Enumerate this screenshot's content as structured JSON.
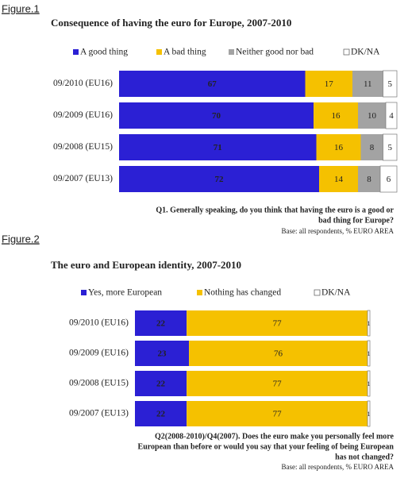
{
  "chart_data": [
    {
      "type": "stacked-bar",
      "figure_label": "Figure.1",
      "title": "Consequence of having the euro for Europe, 2007-2010",
      "categories": [
        "09/2010 (EU16)",
        "09/2009 (EU16)",
        "09/2008 (EU15)",
        "09/2007 (EU13)"
      ],
      "series": [
        {
          "name": "A good thing",
          "color": "#2b20d4",
          "values": [
            67,
            70,
            71,
            72
          ]
        },
        {
          "name": "A bad thing",
          "color": "#f5c100",
          "values": [
            17,
            16,
            16,
            14
          ]
        },
        {
          "name": "Neither good nor bad",
          "color": "#a3a3a3",
          "values": [
            11,
            10,
            8,
            8
          ]
        },
        {
          "name": "DK/NA",
          "color": "#ffffff",
          "values": [
            5,
            4,
            5,
            6
          ]
        }
      ],
      "notes": [
        "Q1. Generally speaking, do you think that having the euro is a good or",
        "bad thing for Europe?"
      ],
      "base": "Base: all respondents, % EURO AREA"
    },
    {
      "type": "stacked-bar",
      "figure_label": "Figure.2",
      "title": "The euro and European identity, 2007-2010",
      "categories": [
        "09/2010 (EU16)",
        "09/2009 (EU16)",
        "09/2008 (EU15)",
        "09/2007 (EU13)"
      ],
      "series": [
        {
          "name": "Yes, more European",
          "color": "#2b20d4",
          "values": [
            22,
            23,
            22,
            22
          ]
        },
        {
          "name": "Nothing has changed",
          "color": "#f5c100",
          "values": [
            77,
            76,
            77,
            77
          ]
        },
        {
          "name": "DK/NA",
          "color": "#ffffff",
          "values": [
            1,
            1,
            1,
            1
          ]
        }
      ],
      "notes": [
        "Q2(2008-2010)/Q4(2007). Does the euro make you personally feel more",
        "European than before or would you say that your feeling of being European",
        "has not changed?"
      ],
      "base": "Base: all respondents, % EURO AREA"
    }
  ]
}
